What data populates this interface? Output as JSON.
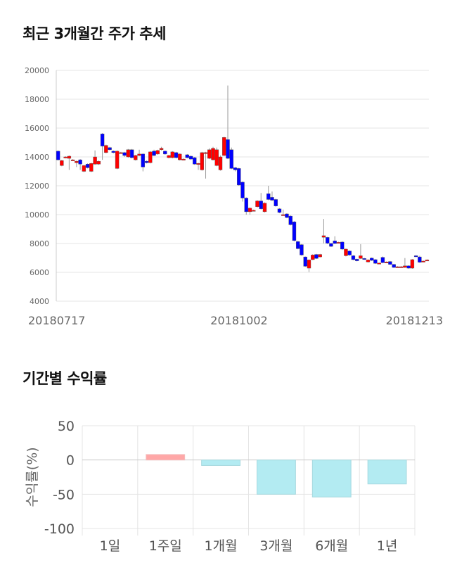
{
  "titles": {
    "price_trend": "최근 3개월간 주가 추세",
    "period_returns": "기간별 수익률"
  },
  "chart_data": [
    {
      "type": "candlestick",
      "title": "최근 3개월간 주가 추세",
      "ylim": [
        4000,
        20000
      ],
      "yticks": [
        "4000",
        "6000",
        "8000",
        "10000",
        "12000",
        "14000",
        "16000",
        "18000",
        "20000"
      ],
      "xticks": [
        "20180717",
        "20181002",
        "20181213"
      ],
      "grid": true,
      "colors": {
        "up": "#ff0000",
        "down": "#0000ff",
        "wick": "#999999"
      },
      "ohlc": [
        [
          14400,
          14450,
          13750,
          13800
        ],
        [
          13400,
          13800,
          13350,
          13750
        ],
        [
          13950,
          14050,
          13900,
          14000
        ],
        [
          13900,
          14100,
          13100,
          14050
        ],
        [
          13800,
          13850,
          13750,
          13800
        ],
        [
          13600,
          13750,
          13300,
          13700
        ],
        [
          13800,
          13850,
          13100,
          13500
        ],
        [
          13000,
          13450,
          12950,
          13400
        ],
        [
          13500,
          13550,
          13200,
          13250
        ],
        [
          13000,
          13600,
          12950,
          13550
        ],
        [
          13500,
          14450,
          13450,
          14000
        ],
        [
          13500,
          13750,
          13450,
          13700
        ],
        [
          15600,
          15650,
          13800,
          14750
        ],
        [
          14300,
          14850,
          14250,
          14800
        ],
        [
          14650,
          14700,
          14450,
          14500
        ],
        [
          14400,
          14450,
          14250,
          14300
        ],
        [
          13200,
          14450,
          13150,
          14400
        ],
        [
          14300,
          14350,
          14250,
          14300
        ],
        [
          14300,
          14350,
          14000,
          14100
        ],
        [
          14000,
          14550,
          13950,
          14500
        ],
        [
          14500,
          14550,
          13900,
          13950
        ],
        [
          13800,
          14150,
          13750,
          14100
        ],
        [
          14100,
          14500,
          14050,
          14200
        ],
        [
          14200,
          14250,
          13000,
          13300
        ],
        [
          13700,
          13750,
          13550,
          13600
        ],
        [
          13600,
          14400,
          13550,
          14350
        ],
        [
          14400,
          14500,
          14050,
          14100
        ],
        [
          14200,
          14500,
          14150,
          14450
        ],
        [
          14500,
          14700,
          14450,
          14600
        ],
        [
          14400,
          14450,
          14150,
          14200
        ],
        [
          13950,
          14150,
          13900,
          14100
        ],
        [
          13950,
          14400,
          13900,
          14350
        ],
        [
          14300,
          14350,
          13900,
          13950
        ],
        [
          13800,
          14250,
          13750,
          14200
        ],
        [
          13850,
          13900,
          13800,
          13850
        ],
        [
          14150,
          14200,
          13900,
          13950
        ],
        [
          14050,
          14100,
          13800,
          13850
        ],
        [
          13950,
          14000,
          13450,
          13500
        ],
        [
          13500,
          13600,
          13100,
          13550
        ],
        [
          13100,
          14350,
          13050,
          14300
        ],
        [
          14250,
          14350,
          12500,
          14300
        ],
        [
          13900,
          14600,
          13850,
          14500
        ],
        [
          13800,
          14700,
          13750,
          14600
        ],
        [
          13400,
          14650,
          13350,
          14500
        ],
        [
          13100,
          14100,
          13050,
          14000
        ],
        [
          14100,
          15400,
          14050,
          15350
        ],
        [
          15200,
          18950,
          13850,
          13900
        ],
        [
          14500,
          14650,
          13150,
          13200
        ],
        [
          13250,
          13300,
          13000,
          13100
        ],
        [
          13200,
          13250,
          12000,
          12050
        ],
        [
          12250,
          12300,
          10900,
          11150
        ],
        [
          11150,
          11200,
          10000,
          10200
        ],
        [
          10200,
          10500,
          10000,
          10450
        ],
        [
          10300,
          10350,
          10250,
          10300
        ],
        [
          10550,
          11000,
          10500,
          10950
        ],
        [
          10950,
          11500,
          10350,
          10400
        ],
        [
          10200,
          10850,
          10150,
          10800
        ],
        [
          11450,
          12000,
          11000,
          11050
        ],
        [
          11200,
          11600,
          10950,
          11000
        ],
        [
          11050,
          11100,
          10550,
          10600
        ],
        [
          10400,
          10450,
          10100,
          10150
        ],
        [
          10000,
          10350,
          9950,
          10000
        ],
        [
          10050,
          10100,
          9750,
          9800
        ],
        [
          9900,
          9950,
          9250,
          9300
        ],
        [
          9500,
          9550,
          8150,
          8200
        ],
        [
          8130,
          8180,
          7600,
          7640
        ],
        [
          7920,
          7960,
          7150,
          7200
        ],
        [
          7070,
          7100,
          6380,
          6420
        ],
        [
          6290,
          6900,
          6020,
          6860
        ],
        [
          6880,
          7250,
          6850,
          7200
        ],
        [
          7240,
          7280,
          6920,
          6960
        ],
        [
          7070,
          7280,
          7030,
          7240
        ],
        [
          8430,
          9700,
          8000,
          8540
        ],
        [
          8420,
          8460,
          7950,
          8020
        ],
        [
          8000,
          8040,
          7760,
          7800
        ],
        [
          8180,
          8500,
          7950,
          8000
        ],
        [
          8060,
          8120,
          8040,
          8080
        ],
        [
          8100,
          8150,
          7550,
          7610
        ],
        [
          7150,
          7650,
          7100,
          7610
        ],
        [
          7480,
          7520,
          7150,
          7200
        ],
        [
          7150,
          7190,
          6840,
          6880
        ],
        [
          6910,
          6950,
          6760,
          6800
        ],
        [
          6960,
          7950,
          6920,
          7150
        ],
        [
          6960,
          7000,
          6870,
          6910
        ],
        [
          6720,
          6900,
          6680,
          6860
        ],
        [
          6990,
          7030,
          6790,
          6830
        ],
        [
          6880,
          6920,
          6580,
          6620
        ],
        [
          6640,
          6680,
          6600,
          6640
        ],
        [
          7040,
          7100,
          6630,
          6670
        ],
        [
          6720,
          6760,
          6680,
          6720
        ],
        [
          6750,
          6790,
          6510,
          6550
        ],
        [
          6550,
          6590,
          6300,
          6340
        ],
        [
          6390,
          6430,
          6350,
          6390
        ],
        [
          6390,
          6430,
          6350,
          6390
        ],
        [
          6340,
          6990,
          6300,
          6450
        ],
        [
          6450,
          6490,
          6250,
          6290
        ],
        [
          6290,
          6920,
          6250,
          6880
        ],
        [
          7150,
          7190,
          7060,
          7100
        ],
        [
          7070,
          7150,
          6660,
          6700
        ],
        [
          6780,
          6820,
          6740,
          6780
        ],
        [
          6860,
          6900,
          6820,
          6860
        ]
      ]
    },
    {
      "type": "bar",
      "title": "기간별 수익률",
      "categories": [
        "1일",
        "1주일",
        "1개월",
        "3개월",
        "6개월",
        "1년"
      ],
      "values": [
        0,
        8,
        -8,
        -50,
        -54,
        -35
      ],
      "ylabel": "수익률(%)",
      "ylim": [
        -100,
        50
      ],
      "yticks": [
        "50",
        "0",
        "-50",
        "-100"
      ],
      "grid": true,
      "colors": {
        "positive": "#ffa7a7",
        "positive_border": "#f3bcbc",
        "negative": "#b3ebf2",
        "negative_border": "#a6d8df"
      }
    }
  ]
}
